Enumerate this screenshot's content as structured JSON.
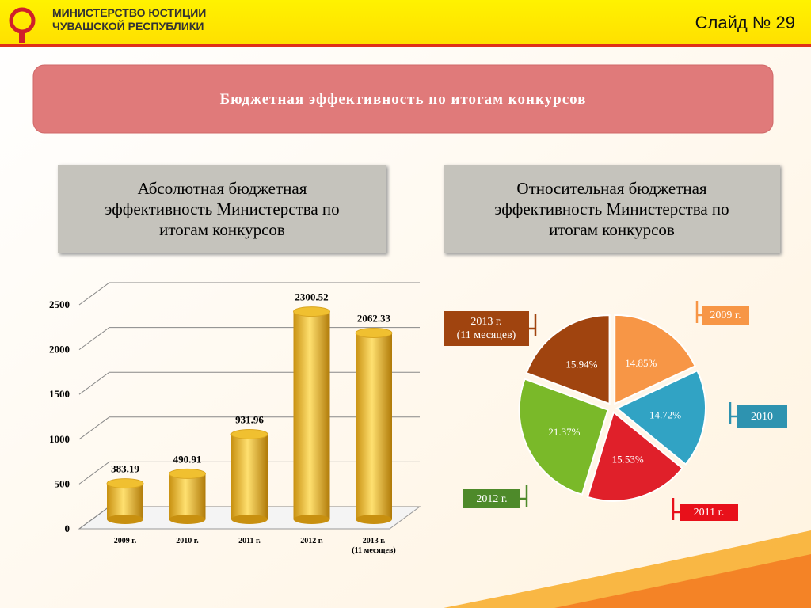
{
  "header": {
    "org_line1": "МИНИСТЕРСТВО ЮСТИЦИИ",
    "org_line2": "ЧУВАШСКОЙ РЕСПУБЛИКИ",
    "slide": "Слайд № 29"
  },
  "banner": "Бюджетная эффективность по итогам конкурсов",
  "chart_data": [
    {
      "type": "bar",
      "title": "Абсолютная бюджетная эффективность Министерства по итогам конкурсов",
      "categories": [
        "2009 г.",
        "2010 г.",
        "2011 г.",
        "2012 г.",
        "2013 г.\n(11 месяцев)"
      ],
      "values": [
        383.19,
        490.91,
        931.96,
        2300.52,
        2062.33
      ],
      "ylim": [
        0,
        2500
      ],
      "yticks": [
        0,
        500,
        1000,
        1500,
        2000,
        2500
      ],
      "color": "#f0c030",
      "grid": true
    },
    {
      "type": "pie",
      "title": "Относительная бюджетная эффективность Министерства по итогам конкурсов",
      "categories": [
        "2009 г.",
        "2010",
        "2011 г.",
        "2012 г.",
        "2013 г.\n(11 месяцев)"
      ],
      "values": [
        14.85,
        14.72,
        15.53,
        21.37,
        15.94
      ],
      "value_labels": [
        "14.85%",
        "14.72%",
        "15.53%",
        "21.37%",
        "15.94%"
      ],
      "colors": [
        "#f79646",
        "#31a3c4",
        "#e0202a",
        "#7ab929",
        "#a0440f"
      ]
    }
  ]
}
